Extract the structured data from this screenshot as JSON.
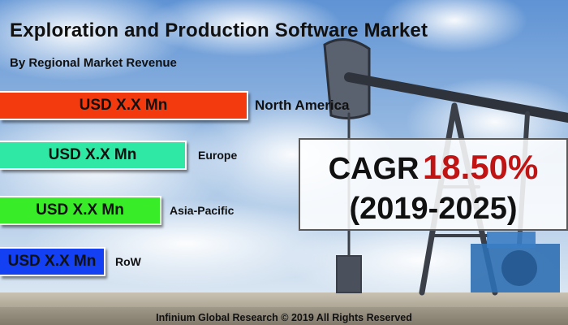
{
  "title": "Exploration and Production Software Market",
  "subtitle": "By Regional Market Revenue",
  "chart_data": {
    "type": "bar",
    "orientation": "horizontal",
    "categories": [
      "North America",
      "Europe",
      "Asia-Pacific",
      "RoW"
    ],
    "values": [
      4,
      3,
      2.6,
      1.7
    ],
    "value_labels": [
      "USD X.X Mn",
      "USD X.X Mn",
      "USD X.X Mn",
      "USD X.X Mn"
    ],
    "colors": [
      "#f23a0e",
      "#2fe8a5",
      "#39ec28",
      "#1240f2"
    ],
    "title": "Exploration and Production Software Market",
    "subtitle": "By Regional Market Revenue",
    "xlabel": "",
    "ylabel": "",
    "grid": false,
    "legend": "none"
  },
  "cagr": {
    "label": "CAGR",
    "value": "18.50%",
    "period": "(2019-2025)",
    "value_color": "#c01414"
  },
  "footer": "Infinium Global Research © 2019 All Rights Reserved",
  "background": {
    "description_icon": "oil-pumpjack-sky-background",
    "sky_top": "#5f93d4",
    "sky_bottom": "#e6eef5"
  }
}
